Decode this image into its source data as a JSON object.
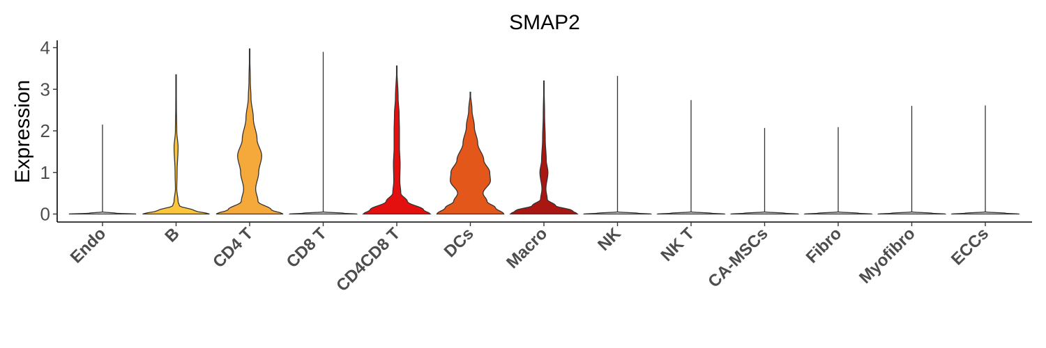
{
  "chart_data": {
    "type": "violin",
    "title": "SMAP2",
    "xlabel": "",
    "ylabel": "Expression",
    "ylim": [
      -0.2,
      4.15
    ],
    "yticks": [
      0,
      1,
      2,
      3,
      4
    ],
    "grid": false,
    "legend": "none",
    "categories": [
      "Endo",
      "B",
      "CD4 T",
      "CD8 T",
      "CD4CD8 T",
      "DCs",
      "Macro",
      "NK",
      "NK T",
      "CA-MSCs",
      "Fibro",
      "Myofibro",
      "ECCs"
    ],
    "colors": [
      "#dcdcdc",
      "#fcc63c",
      "#f6a93b",
      "#d0d0d0",
      "#e3100f",
      "#e3571b",
      "#aa1713",
      "#d0d0d0",
      "#d0d0d0",
      "#d0d0d0",
      "#d0d0d0",
      "#d0d0d0",
      "#d0d0d0"
    ],
    "max_values": [
      2.15,
      3.35,
      3.97,
      3.9,
      3.56,
      2.93,
      3.2,
      3.32,
      2.74,
      2.07,
      2.09,
      2.6,
      2.61
    ],
    "density_profiles": [
      [
        [
          0,
          1.0
        ],
        [
          0.02,
          0.4
        ],
        [
          0.05,
          0.01
        ]
      ],
      [
        [
          0,
          1.0
        ],
        [
          0.08,
          0.55
        ],
        [
          0.2,
          0.1
        ],
        [
          0.3,
          0.06
        ],
        [
          0.6,
          0.02
        ],
        [
          1.0,
          0.03
        ],
        [
          1.6,
          0.06
        ],
        [
          2.0,
          0.02
        ],
        [
          2.6,
          0.01
        ],
        [
          3.35,
          0.0
        ]
      ],
      [
        [
          0,
          1.0
        ],
        [
          0.1,
          0.65
        ],
        [
          0.3,
          0.25
        ],
        [
          0.6,
          0.18
        ],
        [
          1.0,
          0.27
        ],
        [
          1.4,
          0.36
        ],
        [
          1.8,
          0.22
        ],
        [
          2.3,
          0.11
        ],
        [
          2.8,
          0.04
        ],
        [
          3.2,
          0.02
        ],
        [
          3.97,
          0.0
        ]
      ],
      [
        [
          0,
          1.0
        ],
        [
          0.02,
          0.6
        ],
        [
          0.05,
          0.02
        ]
      ],
      [
        [
          0,
          1.0
        ],
        [
          0.1,
          0.8
        ],
        [
          0.3,
          0.32
        ],
        [
          0.5,
          0.12
        ],
        [
          0.8,
          0.09
        ],
        [
          1.2,
          0.1
        ],
        [
          1.6,
          0.08
        ],
        [
          2.0,
          0.08
        ],
        [
          2.4,
          0.07
        ],
        [
          2.8,
          0.04
        ],
        [
          3.56,
          0.0
        ]
      ],
      [
        [
          0,
          1.0
        ],
        [
          0.15,
          0.75
        ],
        [
          0.3,
          0.5
        ],
        [
          0.5,
          0.38
        ],
        [
          0.8,
          0.6
        ],
        [
          1.0,
          0.58
        ],
        [
          1.3,
          0.4
        ],
        [
          1.7,
          0.22
        ],
        [
          2.1,
          0.12
        ],
        [
          2.5,
          0.05
        ],
        [
          2.93,
          0.0
        ]
      ],
      [
        [
          0,
          1.0
        ],
        [
          0.08,
          0.85
        ],
        [
          0.2,
          0.35
        ],
        [
          0.35,
          0.1
        ],
        [
          0.6,
          0.06
        ],
        [
          1.0,
          0.12
        ],
        [
          1.3,
          0.07
        ],
        [
          1.8,
          0.04
        ],
        [
          2.4,
          0.02
        ],
        [
          3.2,
          0.0
        ]
      ],
      [
        [
          0,
          1.0
        ],
        [
          0.02,
          0.6
        ],
        [
          0.05,
          0.02
        ]
      ],
      [
        [
          0,
          1.0
        ],
        [
          0.02,
          0.6
        ],
        [
          0.05,
          0.02
        ]
      ],
      [
        [
          0,
          1.0
        ],
        [
          0.02,
          0.6
        ],
        [
          0.05,
          0.02
        ]
      ],
      [
        [
          0,
          1.0
        ],
        [
          0.02,
          0.6
        ],
        [
          0.05,
          0.02
        ]
      ],
      [
        [
          0,
          1.0
        ],
        [
          0.02,
          0.6
        ],
        [
          0.05,
          0.02
        ]
      ],
      [
        [
          0,
          1.0
        ],
        [
          0.02,
          0.6
        ],
        [
          0.05,
          0.02
        ]
      ]
    ]
  }
}
